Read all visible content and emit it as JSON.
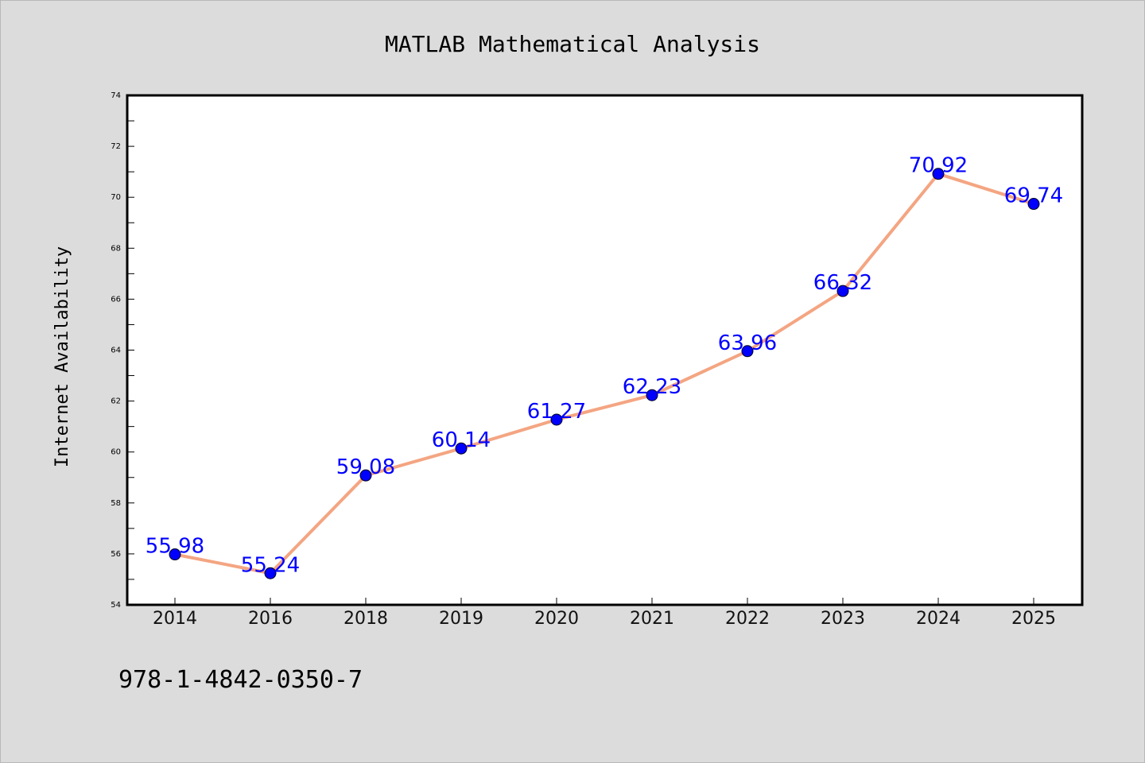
{
  "figure": {
    "background": "#dcdcdc",
    "footer_text": "978-1-4842-0350-7"
  },
  "chart_data": {
    "type": "line",
    "title": "MATLAB Mathematical Analysis",
    "xlabel": "",
    "ylabel": "Internet Availability",
    "categories": [
      "2014",
      "2016",
      "2018",
      "2019",
      "2020",
      "2021",
      "2022",
      "2023",
      "2024",
      "2025"
    ],
    "values": [
      55.98,
      55.24,
      59.08,
      60.14,
      61.27,
      62.23,
      63.96,
      66.32,
      70.92,
      69.74
    ],
    "data_labels": [
      "55.98",
      "55.24",
      "59.08",
      "60.14",
      "61.27",
      "62.23",
      "63.96",
      "66.32",
      "70.92",
      "69.74"
    ],
    "ylim": [
      54,
      74
    ],
    "yticks": [
      "54",
      "56",
      "58",
      "60",
      "62",
      "64",
      "66",
      "68",
      "70",
      "72",
      "74"
    ],
    "grid": false,
    "legend": "none",
    "line_color": "#f4a582",
    "marker_color": "#0000ff",
    "label_color": "#0000ff"
  }
}
